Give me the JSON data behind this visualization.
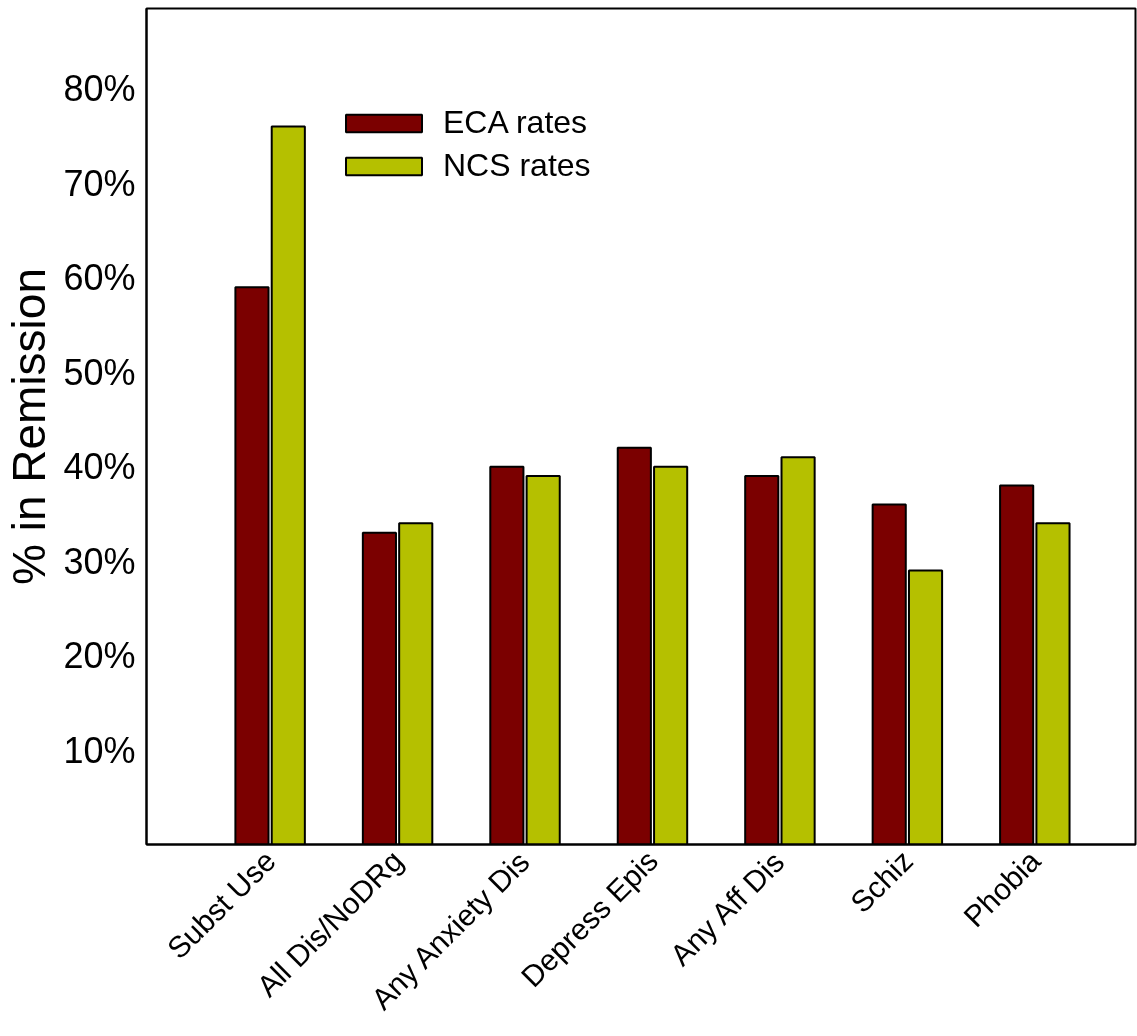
{
  "chart_data": {
    "type": "bar",
    "ylabel": "% in Remission",
    "categories": [
      "Subst Use",
      "All Dis/NoDRg",
      "Any Anxiety Dis",
      "Depress Epis",
      "Any Aff Dis",
      "Schiz",
      "Phobia"
    ],
    "series": [
      {
        "name": "ECA rates",
        "color": "#7b0000",
        "values": [
          59,
          33,
          40,
          42,
          39,
          36,
          38
        ]
      },
      {
        "name": "NCS rates",
        "color": "#b5c000",
        "values": [
          76,
          34,
          39,
          40,
          41,
          29,
          34
        ]
      }
    ],
    "ylim": [
      0,
      88.5
    ],
    "yticks": [
      {
        "value": 10,
        "label": "10%"
      },
      {
        "value": 20,
        "label": "20%"
      },
      {
        "value": 30,
        "label": "30%"
      },
      {
        "value": 40,
        "label": "40%"
      },
      {
        "value": 50,
        "label": "50%"
      },
      {
        "value": 60,
        "label": "60%"
      },
      {
        "value": 70,
        "label": "70%"
      },
      {
        "value": 80,
        "label": "80%"
      }
    ],
    "grid": false,
    "legend": "top left"
  }
}
